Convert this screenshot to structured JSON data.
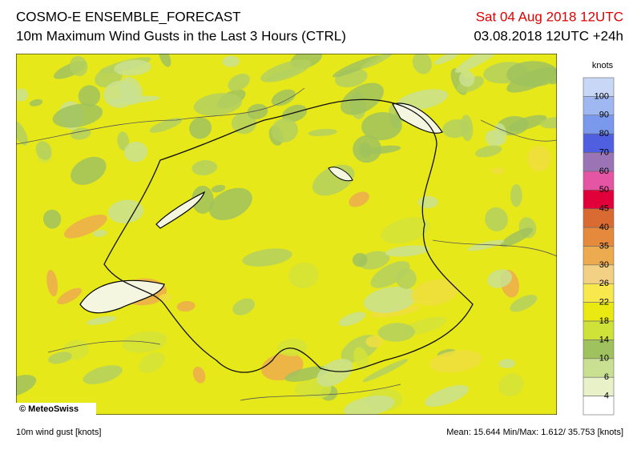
{
  "header": {
    "title": "COSMO-E ENSEMBLE_FORECAST",
    "subtitle": "10m Maximum Wind Gusts in the Last 3 Hours (CTRL)",
    "valid_time": "Sat 04 Aug 2018 12UTC",
    "run_time": "03.08.2018 12UTC +24h"
  },
  "map": {
    "copyright": "© MeteoSwiss"
  },
  "legend": {
    "unit": "knots",
    "levels": [
      "100",
      "90",
      "80",
      "70",
      "60",
      "50",
      "45",
      "40",
      "35",
      "30",
      "26",
      "22",
      "18",
      "14",
      "10",
      "6",
      "4"
    ],
    "colors": [
      "#c9d7f7",
      "#9fb8f2",
      "#7a98ec",
      "#4f5fe0",
      "#9a74b4",
      "#e455a3",
      "#e2003b",
      "#d96b32",
      "#e58a3c",
      "#ecab4e",
      "#f2d184",
      "#f8e84e",
      "#eaea12",
      "#cfe23a",
      "#9fc25e",
      "#c9e092",
      "#e9f1c9",
      "#ffffff"
    ]
  },
  "footer": {
    "left": "10m wind gust [knots]",
    "right": "Mean:  15.644 Min/Max:  1.612/ 35.753 [knots]"
  }
}
